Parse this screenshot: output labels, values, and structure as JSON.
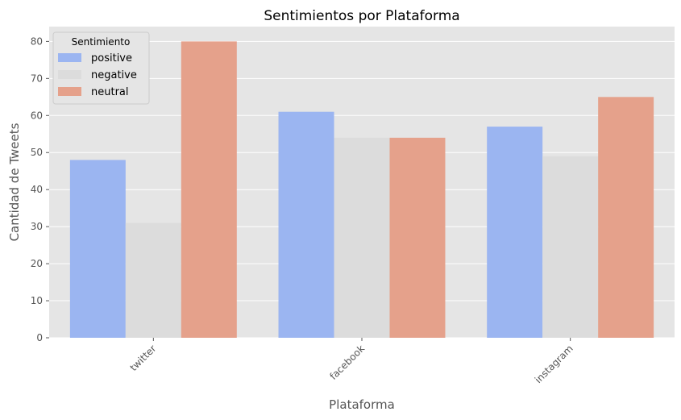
{
  "chart_data": {
    "type": "bar",
    "title": "Sentimientos por Plataforma",
    "xlabel": "Plataforma",
    "ylabel": "Cantidad de Tweets",
    "categories": [
      "twitter",
      "facebook",
      "instagram"
    ],
    "series": [
      {
        "name": "positive",
        "values": [
          48,
          61,
          57
        ],
        "color": "#9bb5f1"
      },
      {
        "name": "negative",
        "values": [
          31,
          54,
          49
        ],
        "color": "#dcdcdc"
      },
      {
        "name": "neutral",
        "values": [
          80,
          54,
          65
        ],
        "color": "#e5a18b"
      }
    ],
    "ylim": [
      0,
      84
    ],
    "yticks": [
      0,
      10,
      20,
      30,
      40,
      50,
      60,
      70,
      80
    ],
    "grid": true,
    "legend": {
      "title": "Sentimiento",
      "placement": "top-left"
    },
    "colors": {
      "plot_background": "#e5e5e5",
      "grid": "#ffffff"
    }
  }
}
